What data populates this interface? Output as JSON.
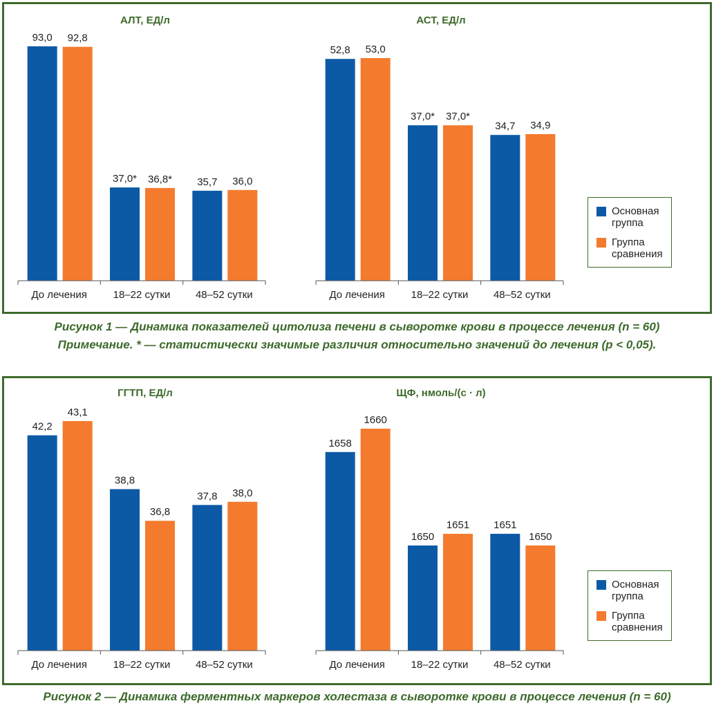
{
  "colors": {
    "main": "#0c5aa6",
    "comparison": "#f47b2e",
    "frame": "#3d6a2b",
    "axis": "#555555"
  },
  "legend": {
    "main_line1": "Основная",
    "main_line2": "группа",
    "comparison_line1": "Группа",
    "comparison_line2": "сравнения"
  },
  "captions": {
    "figure1": "Рисунок 1 — Динамика показателей цитолиза печени в сыворотке крови в процессе лечения (n = 60)",
    "note1": "Примечание. * — статистически значимые различия относительно значений до лечения (р < 0,05).",
    "figure2": "Рисунок 2 — Динамика ферментных маркеров холестаза в сыворотке крови в процессе лечения (n = 60)"
  },
  "chart_data": [
    {
      "type": "bar",
      "title": "АЛТ, ЕД/л",
      "categories": [
        "До лечения",
        "18–22 сутки",
        "48–52 сутки"
      ],
      "series": [
        {
          "name": "Основная группа",
          "values": [
            93.0,
            37.0,
            35.7
          ],
          "labels": [
            "93,0",
            "37,0*",
            "35,7"
          ]
        },
        {
          "name": "Группа сравнения",
          "values": [
            92.8,
            36.8,
            36.0
          ],
          "labels": [
            "92,8",
            "36,8*",
            "36,0"
          ]
        }
      ]
    },
    {
      "type": "bar",
      "title": "АСТ, ЕД/л",
      "categories": [
        "До лечения",
        "18–22 сутки",
        "48–52 сутки"
      ],
      "series": [
        {
          "name": "Основная группа",
          "values": [
            52.8,
            37.0,
            34.7
          ],
          "labels": [
            "52,8",
            "37,0*",
            "34,7"
          ]
        },
        {
          "name": "Группа сравнения",
          "values": [
            53.0,
            37.0,
            34.9
          ],
          "labels": [
            "53,0",
            "37,0*",
            "34,9"
          ]
        }
      ]
    },
    {
      "type": "bar",
      "title": "ГГТП, ЕД/л",
      "categories": [
        "До лечения",
        "18–22 сутки",
        "48–52 сутки"
      ],
      "series": [
        {
          "name": "Основная группа",
          "values": [
            42.2,
            38.8,
            37.8
          ],
          "labels": [
            "42,2",
            "38,8",
            "37,8"
          ]
        },
        {
          "name": "Группа сравнения",
          "values": [
            43.1,
            36.8,
            38.0
          ],
          "labels": [
            "43,1",
            "36,8",
            "38,0"
          ]
        }
      ]
    },
    {
      "type": "bar",
      "title": "ЩФ, нмоль/(с · л)",
      "categories": [
        "До лечения",
        "18–22 сутки",
        "48–52 сутки"
      ],
      "series": [
        {
          "name": "Основная группа",
          "values": [
            1658,
            1650,
            1651
          ],
          "labels": [
            "1658",
            "1650",
            "1651"
          ]
        },
        {
          "name": "Группа сравнения",
          "values": [
            1660,
            1651,
            1650
          ],
          "labels": [
            "1660",
            "1651",
            "1650"
          ]
        }
      ]
    }
  ]
}
